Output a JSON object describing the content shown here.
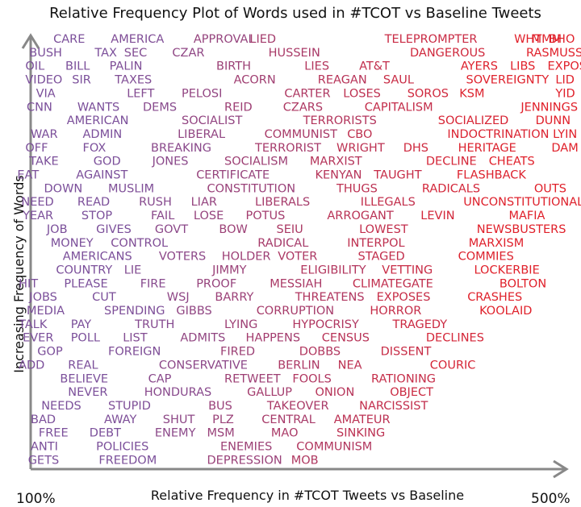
{
  "chart_data": {
    "type": "word-frequency-scatter",
    "title": "Relative Frequency Plot of Words used in #TCOT vs Baseline Tweets",
    "xlabel": "Relative Frequency in #TCOT Tweets vs Baseline",
    "ylabel": "Increasing Frequency of Words",
    "x_ticks": [
      "100%",
      "500%"
    ],
    "xlim": [
      100,
      500
    ],
    "colors": {
      "low": "#7b4f9a",
      "high": "#e0202a",
      "axis": "#888888"
    },
    "rows": [
      [
        [
          "CARE",
          117
        ],
        [
          "AMERICA",
          160
        ],
        [
          "APPROVAL",
          222
        ],
        [
          "LIED",
          264
        ],
        [
          "TELEPROMPTER",
          365
        ],
        [
          "WHT",
          462
        ],
        [
          "MMM",
          475
        ],
        [
          "BHO",
          488
        ]
      ],
      [
        [
          "BUSH",
          99
        ],
        [
          "TAX",
          148
        ],
        [
          "SEC",
          170
        ],
        [
          "CZAR",
          206
        ],
        [
          "HUSSEIN",
          278
        ],
        [
          "DANGEROUS",
          384
        ],
        [
          "RASMUSSEN",
          471
        ]
      ],
      [
        [
          "OIL",
          96
        ],
        [
          "BILL",
          126
        ],
        [
          "PALIN",
          159
        ],
        [
          "BIRTH",
          239
        ],
        [
          "LIES",
          305
        ],
        [
          "AT&T",
          346
        ],
        [
          "AYERS",
          422
        ],
        [
          "LIBS",
          459
        ],
        [
          "EXPOSE",
          487
        ]
      ],
      [
        [
          "VIDEO",
          96
        ],
        [
          "SIR",
          131
        ],
        [
          "TAXES",
          163
        ],
        [
          "ACORN",
          252
        ],
        [
          "REAGAN",
          315
        ],
        [
          "SAUL",
          364
        ],
        [
          "SOVEREIGNTY",
          426
        ],
        [
          "LID",
          493
        ]
      ],
      [
        [
          "VIA",
          104
        ],
        [
          "LEFT",
          172
        ],
        [
          "PELOSI",
          213
        ],
        [
          "CARTER",
          290
        ],
        [
          "LOSES",
          334
        ],
        [
          "SOROS",
          382
        ],
        [
          "KSM",
          421
        ],
        [
          "YID",
          493
        ]
      ],
      [
        [
          "CNN",
          97
        ],
        [
          "WANTS",
          135
        ],
        [
          "DEMS",
          184
        ],
        [
          "REID",
          245
        ],
        [
          "CZARS",
          289
        ],
        [
          "CAPITALISM",
          350
        ],
        [
          "JENNINGS",
          467
        ]
      ],
      [
        [
          "AMERICAN",
          127
        ],
        [
          "SOCIALIST",
          213
        ],
        [
          "TERRORISTS",
          304
        ],
        [
          "SOCIALIZED",
          405
        ],
        [
          "DUNN",
          478
        ]
      ],
      [
        [
          "WAR",
          100
        ],
        [
          "ADMIN",
          139
        ],
        [
          "LIBERAL",
          210
        ],
        [
          "COMMUNIST",
          275
        ],
        [
          "CBO",
          337
        ],
        [
          "INDOCTRINATION",
          412
        ],
        [
          "LYIN",
          491
        ]
      ],
      [
        [
          "OFF",
          96
        ],
        [
          "FOX",
          139
        ],
        [
          "BREAKING",
          190
        ],
        [
          "TERRORIST",
          268
        ],
        [
          "WRIGHT",
          329
        ],
        [
          "DHS",
          379
        ],
        [
          "HERITAGE",
          420
        ],
        [
          "DAM",
          490
        ]
      ],
      [
        [
          "TAKE",
          99
        ],
        [
          "GOD",
          147
        ],
        [
          "JONES",
          191
        ],
        [
          "SOCIALISM",
          245
        ],
        [
          "MARXIST",
          309
        ],
        [
          "DECLINE",
          396
        ],
        [
          "CHEATS",
          443
        ]
      ],
      [
        [
          "EAT",
          90
        ],
        [
          "AGAINST",
          134
        ],
        [
          "CERTIFICATE",
          224
        ],
        [
          "KENYAN",
          313
        ],
        [
          "TAUGHT",
          357
        ],
        [
          "FLASHBACK",
          419
        ]
      ],
      [
        [
          "DOWN",
          110
        ],
        [
          "MUSLIM",
          158
        ],
        [
          "CONSTITUTION",
          232
        ],
        [
          "THUGS",
          329
        ],
        [
          "RADICALS",
          393
        ],
        [
          "OUTS",
          477
        ]
      ],
      [
        [
          "NEED",
          93
        ],
        [
          "READ",
          135
        ],
        [
          "RUSH",
          181
        ],
        [
          "LIAR",
          220
        ],
        [
          "LIBERALS",
          268
        ],
        [
          "ILLEGALS",
          347
        ],
        [
          "UNCONSTITUTIONAL",
          424
        ]
      ],
      [
        [
          "YEAR",
          94
        ],
        [
          "STOP",
          138
        ],
        [
          "FAIL",
          190
        ],
        [
          "LOSE",
          222
        ],
        [
          "POTUS",
          261
        ],
        [
          "ARROGANT",
          322
        ],
        [
          "LEVIN",
          392
        ],
        [
          "MAFIA",
          458
        ]
      ],
      [
        [
          "JOB",
          112
        ],
        [
          "GIVES",
          149
        ],
        [
          "GOVT",
          193
        ],
        [
          "BOW",
          241
        ],
        [
          "SEIU",
          284
        ],
        [
          "LOWEST",
          346
        ],
        [
          "NEWSBUSTERS",
          434
        ]
      ],
      [
        [
          "MONEY",
          115
        ],
        [
          "CONTROL",
          160
        ],
        [
          "RADICAL",
          270
        ],
        [
          "INTERPOL",
          337
        ],
        [
          "MARXISM",
          428
        ]
      ],
      [
        [
          "AMERICANS",
          124
        ],
        [
          "VOTERS",
          196
        ],
        [
          "HOLDER",
          243
        ],
        [
          "VOTER",
          285
        ],
        [
          "STAGED",
          345
        ],
        [
          "COMMIES",
          420
        ]
      ],
      [
        [
          "COUNTRY",
          119
        ],
        [
          "LIE",
          170
        ],
        [
          "JIMMY",
          236
        ],
        [
          "ELIGIBILITY",
          302
        ],
        [
          "VETTING",
          363
        ],
        [
          "LOCKERBIE",
          432
        ]
      ],
      [
        [
          "HIT",
          91
        ],
        [
          "PLEASE",
          125
        ],
        [
          "FIRE",
          182
        ],
        [
          "PROOF",
          224
        ],
        [
          "MESSIAH",
          279
        ],
        [
          "CLIMATEGATE",
          341
        ],
        [
          "BOLTON",
          451
        ]
      ],
      [
        [
          "JOBS",
          99
        ],
        [
          "CUT",
          146
        ],
        [
          "WSJ",
          202
        ],
        [
          "BARRY",
          238
        ],
        [
          "THREATENS",
          298
        ],
        [
          "EXPOSES",
          359
        ],
        [
          "CRASHES",
          427
        ]
      ],
      [
        [
          "MEDIA",
          97
        ],
        [
          "SPENDING",
          155
        ],
        [
          "GIBBS",
          209
        ],
        [
          "CORRUPTION",
          269
        ],
        [
          "HORROR",
          354
        ],
        [
          "KOOLAID",
          436
        ]
      ],
      [
        [
          "TALK",
          91
        ],
        [
          "PAY",
          130
        ],
        [
          "TRUTH",
          178
        ],
        [
          "LYING",
          245
        ],
        [
          "HYPOCRISY",
          296
        ],
        [
          "TRAGEDY",
          371
        ]
      ],
      [
        [
          "EVER",
          94
        ],
        [
          "POLL",
          130
        ],
        [
          "LIST",
          169
        ],
        [
          "ADMITS",
          212
        ],
        [
          "HAPPENS",
          261
        ],
        [
          "CENSUS",
          318
        ],
        [
          "DECLINES",
          396
        ]
      ],
      [
        [
          "GOP",
          105
        ],
        [
          "FOREIGN",
          158
        ],
        [
          "FIRED",
          242
        ],
        [
          "DOBBS",
          301
        ],
        [
          "DISSENT",
          362
        ]
      ],
      [
        [
          "ADD",
          91
        ],
        [
          "REAL",
          128
        ],
        [
          "CONSERVATIVE",
          196
        ],
        [
          "BERLIN",
          285
        ],
        [
          "NEA",
          330
        ],
        [
          "COURIC",
          399
        ]
      ],
      [
        [
          "BELIEVE",
          122
        ],
        [
          "CAP",
          188
        ],
        [
          "RETWEET",
          245
        ],
        [
          "FOOLS",
          296
        ],
        [
          "RATIONING",
          355
        ]
      ],
      [
        [
          "NEVER",
          128
        ],
        [
          "HONDURAS",
          185
        ],
        [
          "GALLUP",
          262
        ],
        [
          "ONION",
          313
        ],
        [
          "OBJECT",
          369
        ]
      ],
      [
        [
          "NEEDS",
          108
        ],
        [
          "STUPID",
          158
        ],
        [
          "BUS",
          233
        ],
        [
          "TAKEOVER",
          277
        ],
        [
          "NARCISSIST",
          346
        ]
      ],
      [
        [
          "BAD",
          100
        ],
        [
          "AWAY",
          155
        ],
        [
          "SHUT",
          199
        ],
        [
          "PLZ",
          236
        ],
        [
          "CENTRAL",
          273
        ],
        [
          "AMATEUR",
          327
        ]
      ],
      [
        [
          "FREE",
          106
        ],
        [
          "DEBT",
          144
        ],
        [
          "ENEMY",
          193
        ],
        [
          "MSM",
          232
        ],
        [
          "MAO",
          280
        ],
        [
          "SINKING",
          329
        ]
      ],
      [
        [
          "ANTI",
          100
        ],
        [
          "POLICIES",
          149
        ],
        [
          "ENEMIES",
          242
        ],
        [
          "COMMUNISM",
          299
        ]
      ],
      [
        [
          "GETS",
          98
        ],
        [
          "FREEDOM",
          151
        ],
        [
          "DEPRESSION",
          232
        ],
        [
          "MOB",
          295
        ]
      ]
    ]
  }
}
